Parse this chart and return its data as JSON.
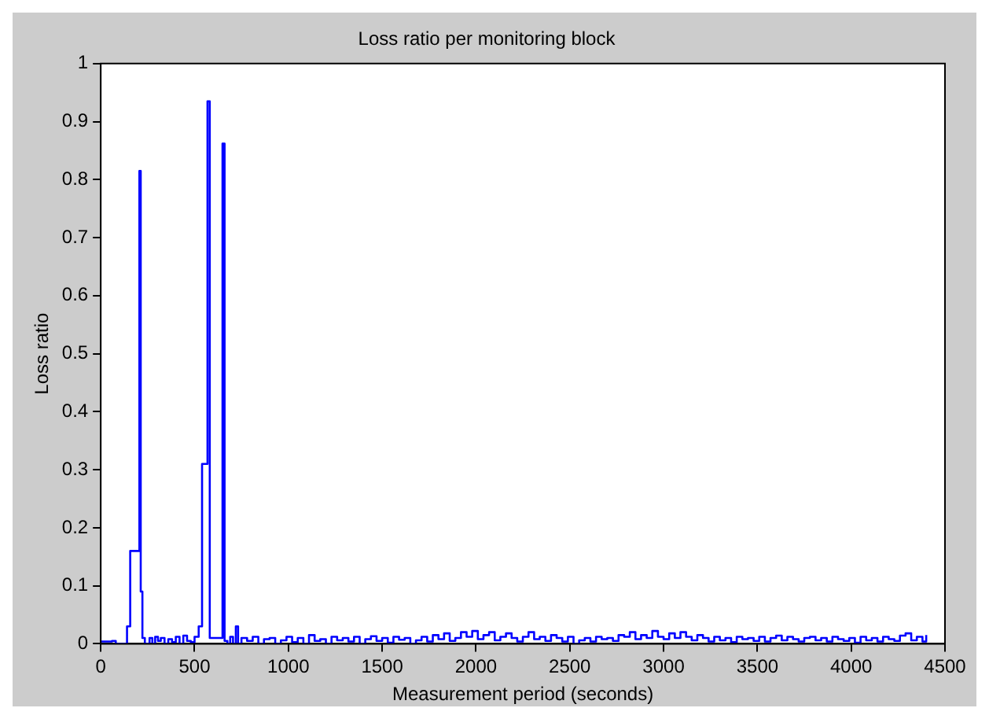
{
  "chart_data": {
    "type": "step",
    "title": "Loss ratio per monitoring block",
    "xlabel": "Measurement period (seconds)",
    "ylabel": "Loss ratio",
    "x": [
      0,
      60,
      80,
      140,
      157,
      206,
      213,
      222,
      235,
      260,
      275,
      290,
      305,
      320,
      340,
      360,
      380,
      400,
      420,
      440,
      460,
      480,
      500,
      522,
      540,
      569,
      581,
      649,
      660,
      675,
      690,
      705,
      720,
      732,
      750,
      780,
      810,
      840,
      870,
      900,
      930,
      960,
      990,
      1020,
      1050,
      1080,
      1110,
      1140,
      1170,
      1200,
      1230,
      1260,
      1290,
      1320,
      1350,
      1380,
      1410,
      1440,
      1470,
      1500,
      1530,
      1560,
      1590,
      1620,
      1650,
      1680,
      1710,
      1740,
      1770,
      1800,
      1830,
      1860,
      1890,
      1920,
      1950,
      1980,
      2010,
      2040,
      2070,
      2100,
      2130,
      2160,
      2190,
      2220,
      2250,
      2280,
      2310,
      2340,
      2370,
      2400,
      2430,
      2460,
      2490,
      2520,
      2550,
      2580,
      2610,
      2640,
      2670,
      2700,
      2730,
      2760,
      2790,
      2820,
      2850,
      2880,
      2910,
      2940,
      2970,
      3000,
      3030,
      3060,
      3090,
      3120,
      3150,
      3180,
      3210,
      3240,
      3270,
      3300,
      3330,
      3360,
      3390,
      3420,
      3450,
      3480,
      3510,
      3540,
      3570,
      3600,
      3630,
      3660,
      3690,
      3720,
      3750,
      3780,
      3810,
      3840,
      3870,
      3900,
      3930,
      3960,
      3990,
      4020,
      4050,
      4080,
      4110,
      4140,
      4170,
      4200,
      4230,
      4260,
      4290,
      4320,
      4350,
      4380,
      4400
    ],
    "series": [
      {
        "color": "#0000ff",
        "values": [
          0.004,
          0.005,
          0,
          0.03,
          0.16,
          0.815,
          0.09,
          0.01,
          0,
          0.01,
          0,
          0.012,
          0.005,
          0.01,
          0,
          0.008,
          0.003,
          0.012,
          0,
          0.014,
          0.005,
          0.003,
          0.012,
          0.03,
          0.31,
          0.935,
          0.01,
          0.862,
          0.005,
          0,
          0.012,
          0,
          0.03,
          0,
          0.01,
          0.005,
          0.012,
          0,
          0.008,
          0.01,
          0,
          0.006,
          0.012,
          0.003,
          0.01,
          0,
          0.015,
          0.005,
          0.008,
          0,
          0.012,
          0.006,
          0.01,
          0.004,
          0.012,
          0,
          0.008,
          0.013,
          0.005,
          0.01,
          0.002,
          0.012,
          0.007,
          0.01,
          0,
          0.006,
          0.012,
          0.004,
          0.015,
          0.008,
          0.018,
          0.005,
          0.01,
          0.02,
          0.012,
          0.022,
          0.008,
          0.015,
          0.02,
          0.006,
          0.012,
          0.018,
          0.01,
          0.004,
          0.012,
          0.02,
          0.008,
          0.012,
          0.005,
          0.015,
          0.01,
          0.004,
          0.012,
          0,
          0.006,
          0.01,
          0.004,
          0.012,
          0.008,
          0.01,
          0.005,
          0.015,
          0.012,
          0.02,
          0.008,
          0.015,
          0.01,
          0.022,
          0.012,
          0.008,
          0.018,
          0.01,
          0.02,
          0.012,
          0.006,
          0.015,
          0.01,
          0.004,
          0.012,
          0.006,
          0.01,
          0.003,
          0.012,
          0.008,
          0.01,
          0.005,
          0.012,
          0.004,
          0.01,
          0.014,
          0.006,
          0.012,
          0.008,
          0.004,
          0.01,
          0.012,
          0.006,
          0.01,
          0.004,
          0.012,
          0.008,
          0.005,
          0.01,
          0.002,
          0.012,
          0.006,
          0.01,
          0.004,
          0.012,
          0.008,
          0.005,
          0.014,
          0.018,
          0.006,
          0.012,
          0.004,
          0.015
        ]
      }
    ],
    "xlim": [
      0,
      4500
    ],
    "xticks": [
      0,
      500,
      1000,
      1500,
      2000,
      2500,
      3000,
      3500,
      4000,
      4500
    ],
    "ylim": [
      0,
      1
    ],
    "yticks": [
      0,
      0.1,
      0.2,
      0.3,
      0.4,
      0.5,
      0.6,
      0.7,
      0.8,
      0.9,
      1
    ],
    "grid": false,
    "legend": false
  }
}
